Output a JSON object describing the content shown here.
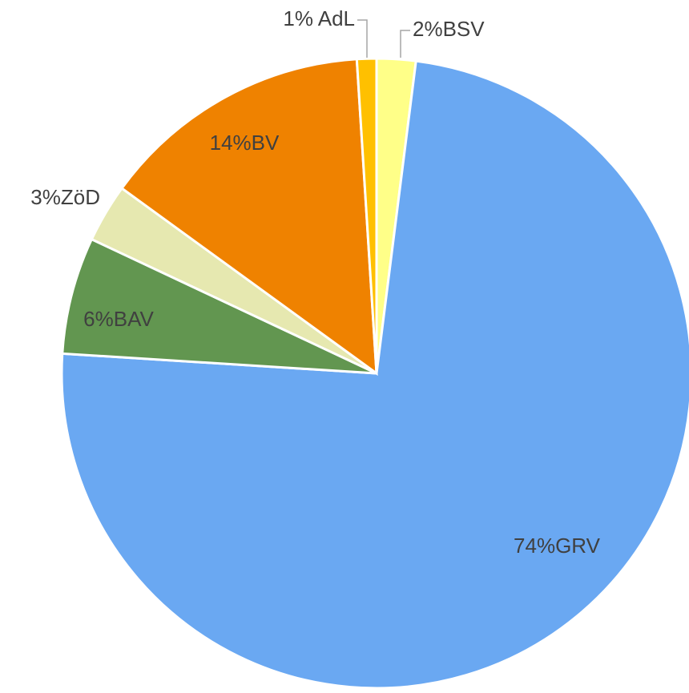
{
  "chart_data": {
    "type": "pie",
    "categories": [
      "BSV",
      "GRV",
      "BAV",
      "ZöD",
      "BV",
      "AdL"
    ],
    "values": [
      2,
      74,
      6,
      3,
      14,
      1
    ],
    "value_labels": [
      "2%BSV",
      "74%GRV",
      "6%BAV",
      "3%ZöD",
      "14%BV",
      "1% AdL"
    ],
    "colors": [
      "#ffff88",
      "#6aa8f2",
      "#629650",
      "#e6e8b0",
      "#ef8200",
      "#ffc000"
    ]
  }
}
